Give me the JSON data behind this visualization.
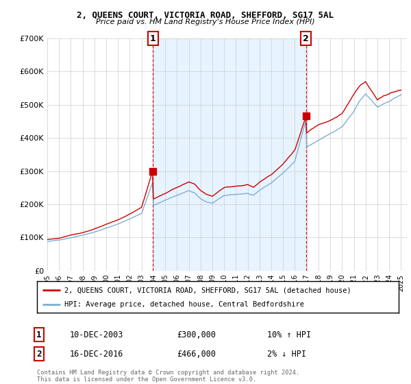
{
  "title": "2, QUEENS COURT, VICTORIA ROAD, SHEFFORD, SG17 5AL",
  "subtitle": "Price paid vs. HM Land Registry's House Price Index (HPI)",
  "legend_line1": "2, QUEENS COURT, VICTORIA ROAD, SHEFFORD, SG17 5AL (detached house)",
  "legend_line2": "HPI: Average price, detached house, Central Bedfordshire",
  "sale1_label": "1",
  "sale1_date": "10-DEC-2003",
  "sale1_price": "£300,000",
  "sale1_hpi": "10% ↑ HPI",
  "sale1_year": 2003.95,
  "sale1_value": 300000,
  "sale2_label": "2",
  "sale2_date": "16-DEC-2016",
  "sale2_price": "£466,000",
  "sale2_hpi": "2% ↓ HPI",
  "sale2_year": 2016.95,
  "sale2_value": 466000,
  "footer": "Contains HM Land Registry data © Crown copyright and database right 2024.\nThis data is licensed under the Open Government Licence v3.0.",
  "ylim": [
    0,
    700000
  ],
  "yticks": [
    0,
    100000,
    200000,
    300000,
    400000,
    500000,
    600000,
    700000
  ],
  "ytick_labels": [
    "£0",
    "£100K",
    "£200K",
    "£300K",
    "£400K",
    "£500K",
    "£600K",
    "£700K"
  ],
  "red_color": "#cc0000",
  "blue_color": "#7ab0d4",
  "shade_color": "#ddeeff",
  "background_color": "#ffffff",
  "grid_color": "#cccccc",
  "xlim_start": 1995.0,
  "xlim_end": 2025.5
}
